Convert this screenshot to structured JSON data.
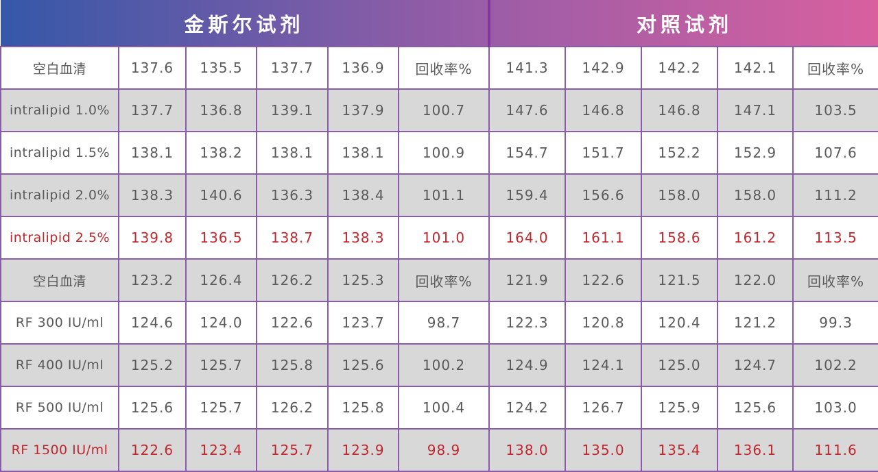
{
  "header": {
    "left_title": "金斯尔试剂",
    "right_title": "对照试剂"
  },
  "chart_data": {
    "type": "table",
    "column_groups": [
      {
        "title": "金斯尔试剂",
        "span": 6
      },
      {
        "title": "对照试剂",
        "span": 5
      }
    ],
    "recovery_header_label": "回收率%",
    "rows": [
      {
        "label": "空白血清",
        "values": [
          "137.6",
          "135.5",
          "137.7",
          "136.9",
          "回收率%",
          "141.3",
          "142.9",
          "142.2",
          "142.1",
          "回收率%"
        ],
        "highlight": false
      },
      {
        "label": "intralipid 1.0%",
        "values": [
          "137.7",
          "136.8",
          "139.1",
          "137.9",
          "100.7",
          "147.6",
          "146.8",
          "146.8",
          "147.1",
          "103.5"
        ],
        "highlight": false
      },
      {
        "label": "intralipid 1.5%",
        "values": [
          "138.1",
          "138.2",
          "138.1",
          "138.1",
          "100.9",
          "154.7",
          "151.7",
          "152.2",
          "152.9",
          "107.6"
        ],
        "highlight": false
      },
      {
        "label": "intralipid 2.0%",
        "values": [
          "138.3",
          "140.6",
          "136.3",
          "138.4",
          "101.1",
          "159.4",
          "156.6",
          "158.0",
          "158.0",
          "111.2"
        ],
        "highlight": false
      },
      {
        "label": "intralipid 2.5%",
        "values": [
          "139.8",
          "136.5",
          "138.7",
          "138.3",
          "101.0",
          "164.0",
          "161.1",
          "158.6",
          "161.2",
          "113.5"
        ],
        "highlight": true
      },
      {
        "label": "空白血清",
        "values": [
          "123.2",
          "126.4",
          "126.2",
          "125.3",
          "回收率%",
          "121.9",
          "122.6",
          "121.5",
          "122.0",
          "回收率%"
        ],
        "highlight": false
      },
      {
        "label": "RF 300 IU/ml",
        "values": [
          "124.6",
          "124.0",
          "122.6",
          "123.7",
          "98.7",
          "122.3",
          "120.8",
          "120.4",
          "121.2",
          "99.3"
        ],
        "highlight": false
      },
      {
        "label": "RF 400 IU/ml",
        "values": [
          "125.2",
          "125.7",
          "125.8",
          "125.6",
          "100.2",
          "124.9",
          "124.1",
          "125.0",
          "124.7",
          "102.2"
        ],
        "highlight": false
      },
      {
        "label": "RF 500 IU/ml",
        "values": [
          "125.6",
          "125.7",
          "126.2",
          "125.8",
          "100.4",
          "124.2",
          "126.7",
          "125.9",
          "125.6",
          "103.0"
        ],
        "highlight": false
      },
      {
        "label": "RF 1500 IU/ml",
        "values": [
          "122.6",
          "123.4",
          "125.7",
          "123.9",
          "98.9",
          "138.0",
          "135.0",
          "135.4",
          "136.1",
          "111.6"
        ],
        "highlight": true
      }
    ]
  },
  "colors": {
    "gradient_blue": "#3558a8",
    "gradient_purple": "#9c5da7",
    "gradient_pink": "#d8609f",
    "header_divider": "#80379b",
    "border": "#8a5ba8",
    "alt_row_bg": "#d8d8d8",
    "text": "#5a5a5a",
    "highlight": "#c1272d"
  }
}
